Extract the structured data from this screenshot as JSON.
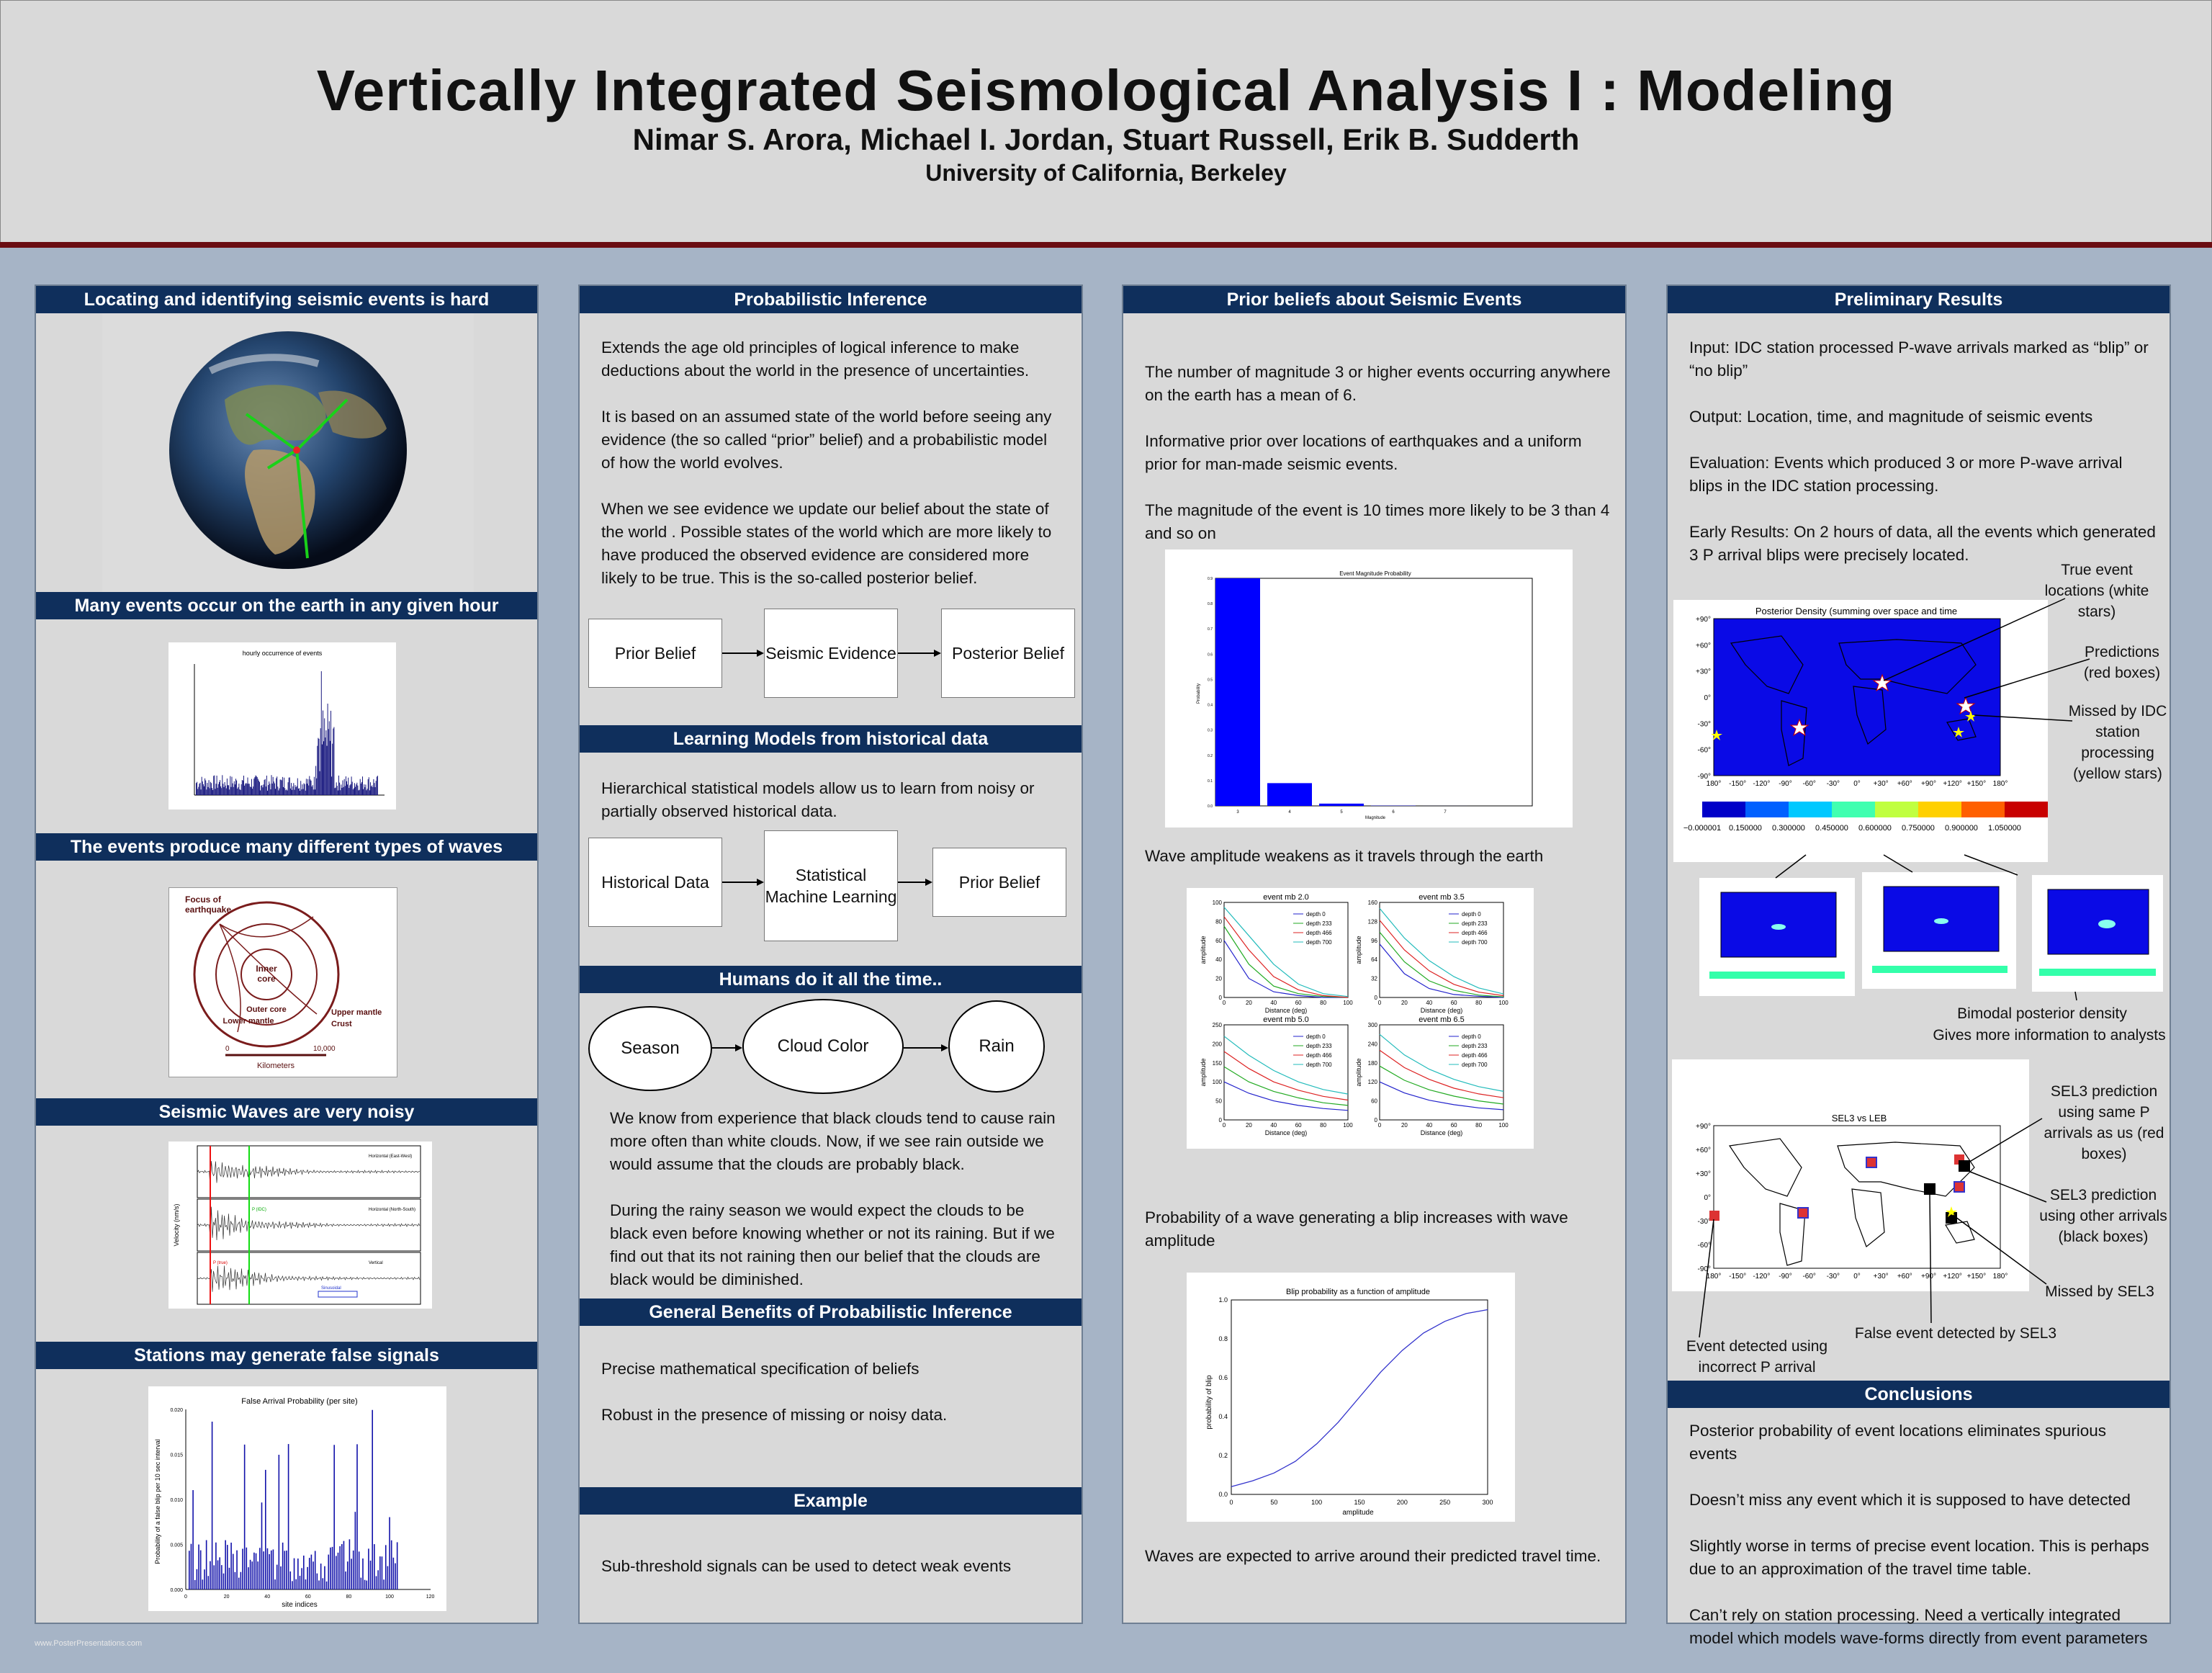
{
  "header": {
    "title": "Vertically Integrated Seismological Analysis I : Modeling",
    "authors": "Nimar S. Arora, Michael I. Jordan, Stuart Russell, Erik B. Sudderth",
    "affiliation": "University of California, Berkeley"
  },
  "col1": {
    "s1": "Locating and identifying seismic events is hard",
    "s2": "Many events occur on the earth in any given hour",
    "s2_fig_title": "hourly occurrence of events",
    "s3": "The events produce many different types of waves",
    "s3_fig": {
      "focus": "Focus of",
      "focus2": "earthquake",
      "inner": "Inner",
      "core": "core",
      "outer": "Outer core",
      "lower": "Lower mantle",
      "upper": "Upper mantle",
      "crust": "Crust",
      "km": "Kilometers",
      "zero": "0",
      "tenk": "10,000"
    },
    "s4": "Seismic Waves are very noisy",
    "s4_fig": {
      "ylabel": "Velocity (nm/s)",
      "h": "Horizontal (East-West)",
      "h2": "Horizontal (North-South)",
      "v": "Vertical",
      "ptag": "P (true)",
      "ptag2": "P (IDC)",
      "smark": "Sinusoidal"
    },
    "s5": "Stations may generate false signals",
    "s5_fig_title": "False Arrival Probability (per site)",
    "s5_xlabel": "site indices",
    "s5_ylabel": "Probability of a false blip per 10 sec interval"
  },
  "col2": {
    "s1": "Probabilistic Inference",
    "p1": "Extends the age old principles of logical inference to make deductions about the world in the presence of uncertainties.",
    "p2": "It is based on an assumed state of the world before seeing any evidence (the so called “prior” belief) and a probabilistic model of how the world evolves.",
    "p3": "When we see evidence we update our belief about the state of the world . Possible states of the world which are more likely to have produced the observed evidence are considered more likely to be true. This is the so-called posterior belief.",
    "flow1": {
      "a": "Prior Belief",
      "b": "Seismic Evidence",
      "c": "Posterior Belief"
    },
    "s2": "Learning Models from historical data",
    "p4": "Hierarchical statistical models allow us to learn from noisy or partially observed historical data.",
    "flow2": {
      "a": "Historical Data",
      "b": "Statistical Machine Learning",
      "c": "Prior Belief"
    },
    "s3": "Humans do it all the time..",
    "flow3": {
      "a": "Season",
      "b": "Cloud Color",
      "c": "Rain"
    },
    "p5": "We know from experience that black clouds tend to cause rain more often than white clouds. Now, if we see rain outside we would assume that the clouds are probably black.",
    "p6": "During the rainy season we would expect the clouds to be black even before knowing whether or not its raining. But if we find out that its not raining then our belief that the clouds are black would be diminished.",
    "s4": "General Benefits of Probabilistic Inference",
    "p7": "Precise mathematical specification of beliefs",
    "p8": "Robust in the presence of missing or noisy data.",
    "s5": "Example",
    "p9": "Sub-threshold signals can be used to detect weak events"
  },
  "col3": {
    "s1": "Prior beliefs about Seismic Events",
    "p1": "The number of magnitude 3 or higher events occurring anywhere on the earth has a mean of 6.",
    "p2": "Informative prior over locations of earthquakes and a uniform prior for man-made seismic events.",
    "p3": "The magnitude of the event is 10 times more likely to be 3 than 4 and so on",
    "mag_title": "Event Magnitude Probability",
    "mag_xlabel": "Magnitude",
    "mag_ylabel": "Probability",
    "p4": "Wave amplitude weakens as it travels through the earth",
    "amp_titles": [
      "event mb 2.0",
      "event mb 3.5",
      "event mb 5.0",
      "event mb 6.5"
    ],
    "amp_legend": [
      "depth 0",
      "depth 233",
      "depth 466",
      "depth 700"
    ],
    "amp_xlabel": "Distance (deg)",
    "amp_ylabel": "amplitude",
    "p5": "Probability of a wave generating a blip increases with wave amplitude",
    "blip_title": "Blip probability as a function of amplitude",
    "blip_xlabel": "amplitude",
    "blip_ylabel": "probability of blip",
    "p6": "Waves are expected to arrive around their predicted travel time."
  },
  "col4": {
    "s1": "Preliminary Results",
    "p1": "Input: IDC station processed P-wave arrivals marked as “blip” or “no blip”",
    "p2": "Output: Location, time, and magnitude of seismic events",
    "p3": "Evaluation: Events which produced 3 or more P-wave arrival blips in the IDC station processing.",
    "p4": "Early Results: On 2 hours of data, all the events which generated 3 P arrival blips were precisely located.",
    "map1_title": "Posterior Density (summing over space and time",
    "ann_true": "True event locations (white stars)",
    "ann_pred": "Predictions (red boxes)",
    "ann_missed": "Missed by IDC station processing (yellow stars)",
    "ann_bimodal": "Bimodal posterior density",
    "ann_bimodal2": "Gives more information to analysts",
    "map2_title": "SEL3 vs LEB",
    "ann_sel3a": "SEL3 prediction using same P arrivals as us (red boxes)",
    "ann_sel3b": "SEL3 prediction using other arrivals (black boxes)",
    "ann_missed_sel3": "Missed by SEL3",
    "ann_false": "False event detected by SEL3",
    "ann_incorrect": "Event detected using incorrect P arrival",
    "s2": "Conclusions",
    "c1": "Posterior probability of event locations eliminates spurious events",
    "c2": "Doesn’t miss any event which it is supposed to have detected",
    "c3": "Slightly worse in terms of precise event location. This is perhaps due to an approximation of the travel time table.",
    "c4": "Can’t rely on station processing. Need a vertically integrated model which models wave-forms directly from event parameters",
    "lat_ticks": [
      "+90°",
      "+60°",
      "+30°",
      "0°",
      "-30°",
      "-60°",
      "-90°"
    ],
    "lon_ticks": [
      "180°",
      "-150°",
      "-120°",
      "-90°",
      "-60°",
      "-30°",
      "0°",
      "+30°",
      "+60°",
      "+90°",
      "+120°",
      "+150°",
      "180°"
    ],
    "cbar_ticks": [
      "−0.000001",
      "0.150000",
      "0.300000",
      "0.450000",
      "0.600000",
      "0.750000",
      "0.900000",
      "1.050000"
    ]
  },
  "footer": "www.PosterPresentations.com",
  "chart_data": [
    {
      "type": "bar",
      "title": "Event Magnitude Probability",
      "xlabel": "Magnitude",
      "ylabel": "Probability",
      "categories": [
        "3",
        "4",
        "5",
        "6",
        "7"
      ],
      "values": [
        0.9,
        0.09,
        0.009,
        0.0009,
        0.0001
      ],
      "ylim": [
        0,
        0.9
      ]
    },
    {
      "type": "line",
      "title": "Blip probability as a function of amplitude",
      "xlabel": "amplitude",
      "ylabel": "probability of blip",
      "x": [
        0,
        25,
        50,
        75,
        100,
        125,
        150,
        175,
        200,
        225,
        250,
        275,
        300
      ],
      "series": [
        {
          "values": [
            0.04,
            0.07,
            0.11,
            0.17,
            0.26,
            0.37,
            0.5,
            0.63,
            0.74,
            0.83,
            0.89,
            0.93,
            0.95
          ]
        }
      ],
      "xlim": [
        0,
        300
      ],
      "ylim": [
        0,
        1.0
      ],
      "xticks": [
        "0",
        "50",
        "100",
        "150",
        "200",
        "250",
        "300"
      ],
      "yticks": [
        "0.0",
        "0.2",
        "0.4",
        "0.6",
        "0.8",
        "1.0"
      ]
    },
    {
      "type": "line",
      "title": "event mb 2.0",
      "xlabel": "Distance (deg)",
      "ylabel": "amplitude",
      "x": [
        0,
        20,
        40,
        60,
        80,
        100
      ],
      "ylim": [
        0,
        100
      ],
      "series": [
        {
          "name": "depth 0",
          "values": [
            60,
            20,
            6,
            2,
            0,
            0
          ]
        },
        {
          "name": "depth 233",
          "values": [
            75,
            35,
            12,
            4,
            1,
            0
          ]
        },
        {
          "name": "depth 466",
          "values": [
            85,
            50,
            22,
            8,
            2,
            0
          ]
        },
        {
          "name": "depth 700",
          "values": [
            95,
            65,
            35,
            14,
            4,
            1
          ]
        }
      ]
    },
    {
      "type": "line",
      "title": "event mb 3.5",
      "xlabel": "Distance (deg)",
      "ylabel": "amplitude",
      "x": [
        0,
        20,
        40,
        60,
        80,
        100
      ],
      "ylim": [
        0,
        160
      ],
      "series": [
        {
          "name": "depth 0",
          "values": [
            90,
            40,
            15,
            5,
            2,
            0
          ]
        },
        {
          "name": "depth 233",
          "values": [
            110,
            60,
            28,
            12,
            4,
            1
          ]
        },
        {
          "name": "depth 466",
          "values": [
            130,
            80,
            45,
            22,
            9,
            3
          ]
        },
        {
          "name": "depth 700",
          "values": [
            150,
            100,
            62,
            35,
            16,
            6
          ]
        }
      ]
    },
    {
      "type": "line",
      "title": "event mb 5.0",
      "xlabel": "Distance (deg)",
      "ylabel": "amplitude",
      "x": [
        0,
        20,
        40,
        60,
        80,
        100
      ],
      "ylim": [
        0,
        250
      ],
      "series": [
        {
          "name": "depth 0",
          "values": [
            100,
            70,
            50,
            38,
            30,
            25
          ]
        },
        {
          "name": "depth 233",
          "values": [
            140,
            100,
            75,
            58,
            45,
            38
          ]
        },
        {
          "name": "depth 466",
          "values": [
            180,
            135,
            100,
            78,
            62,
            52
          ]
        },
        {
          "name": "depth 700",
          "values": [
            220,
            170,
            130,
            100,
            80,
            68
          ]
        }
      ]
    },
    {
      "type": "line",
      "title": "event mb 6.5",
      "xlabel": "Distance (deg)",
      "ylabel": "amplitude",
      "x": [
        0,
        20,
        40,
        60,
        80,
        100
      ],
      "ylim": [
        0,
        300
      ],
      "series": [
        {
          "name": "depth 0",
          "values": [
            120,
            85,
            62,
            48,
            38,
            32
          ]
        },
        {
          "name": "depth 233",
          "values": [
            170,
            125,
            95,
            75,
            60,
            50
          ]
        },
        {
          "name": "depth 466",
          "values": [
            220,
            165,
            128,
            100,
            82,
            70
          ]
        },
        {
          "name": "depth 700",
          "values": [
            270,
            205,
            160,
            128,
            105,
            90
          ]
        }
      ]
    }
  ]
}
